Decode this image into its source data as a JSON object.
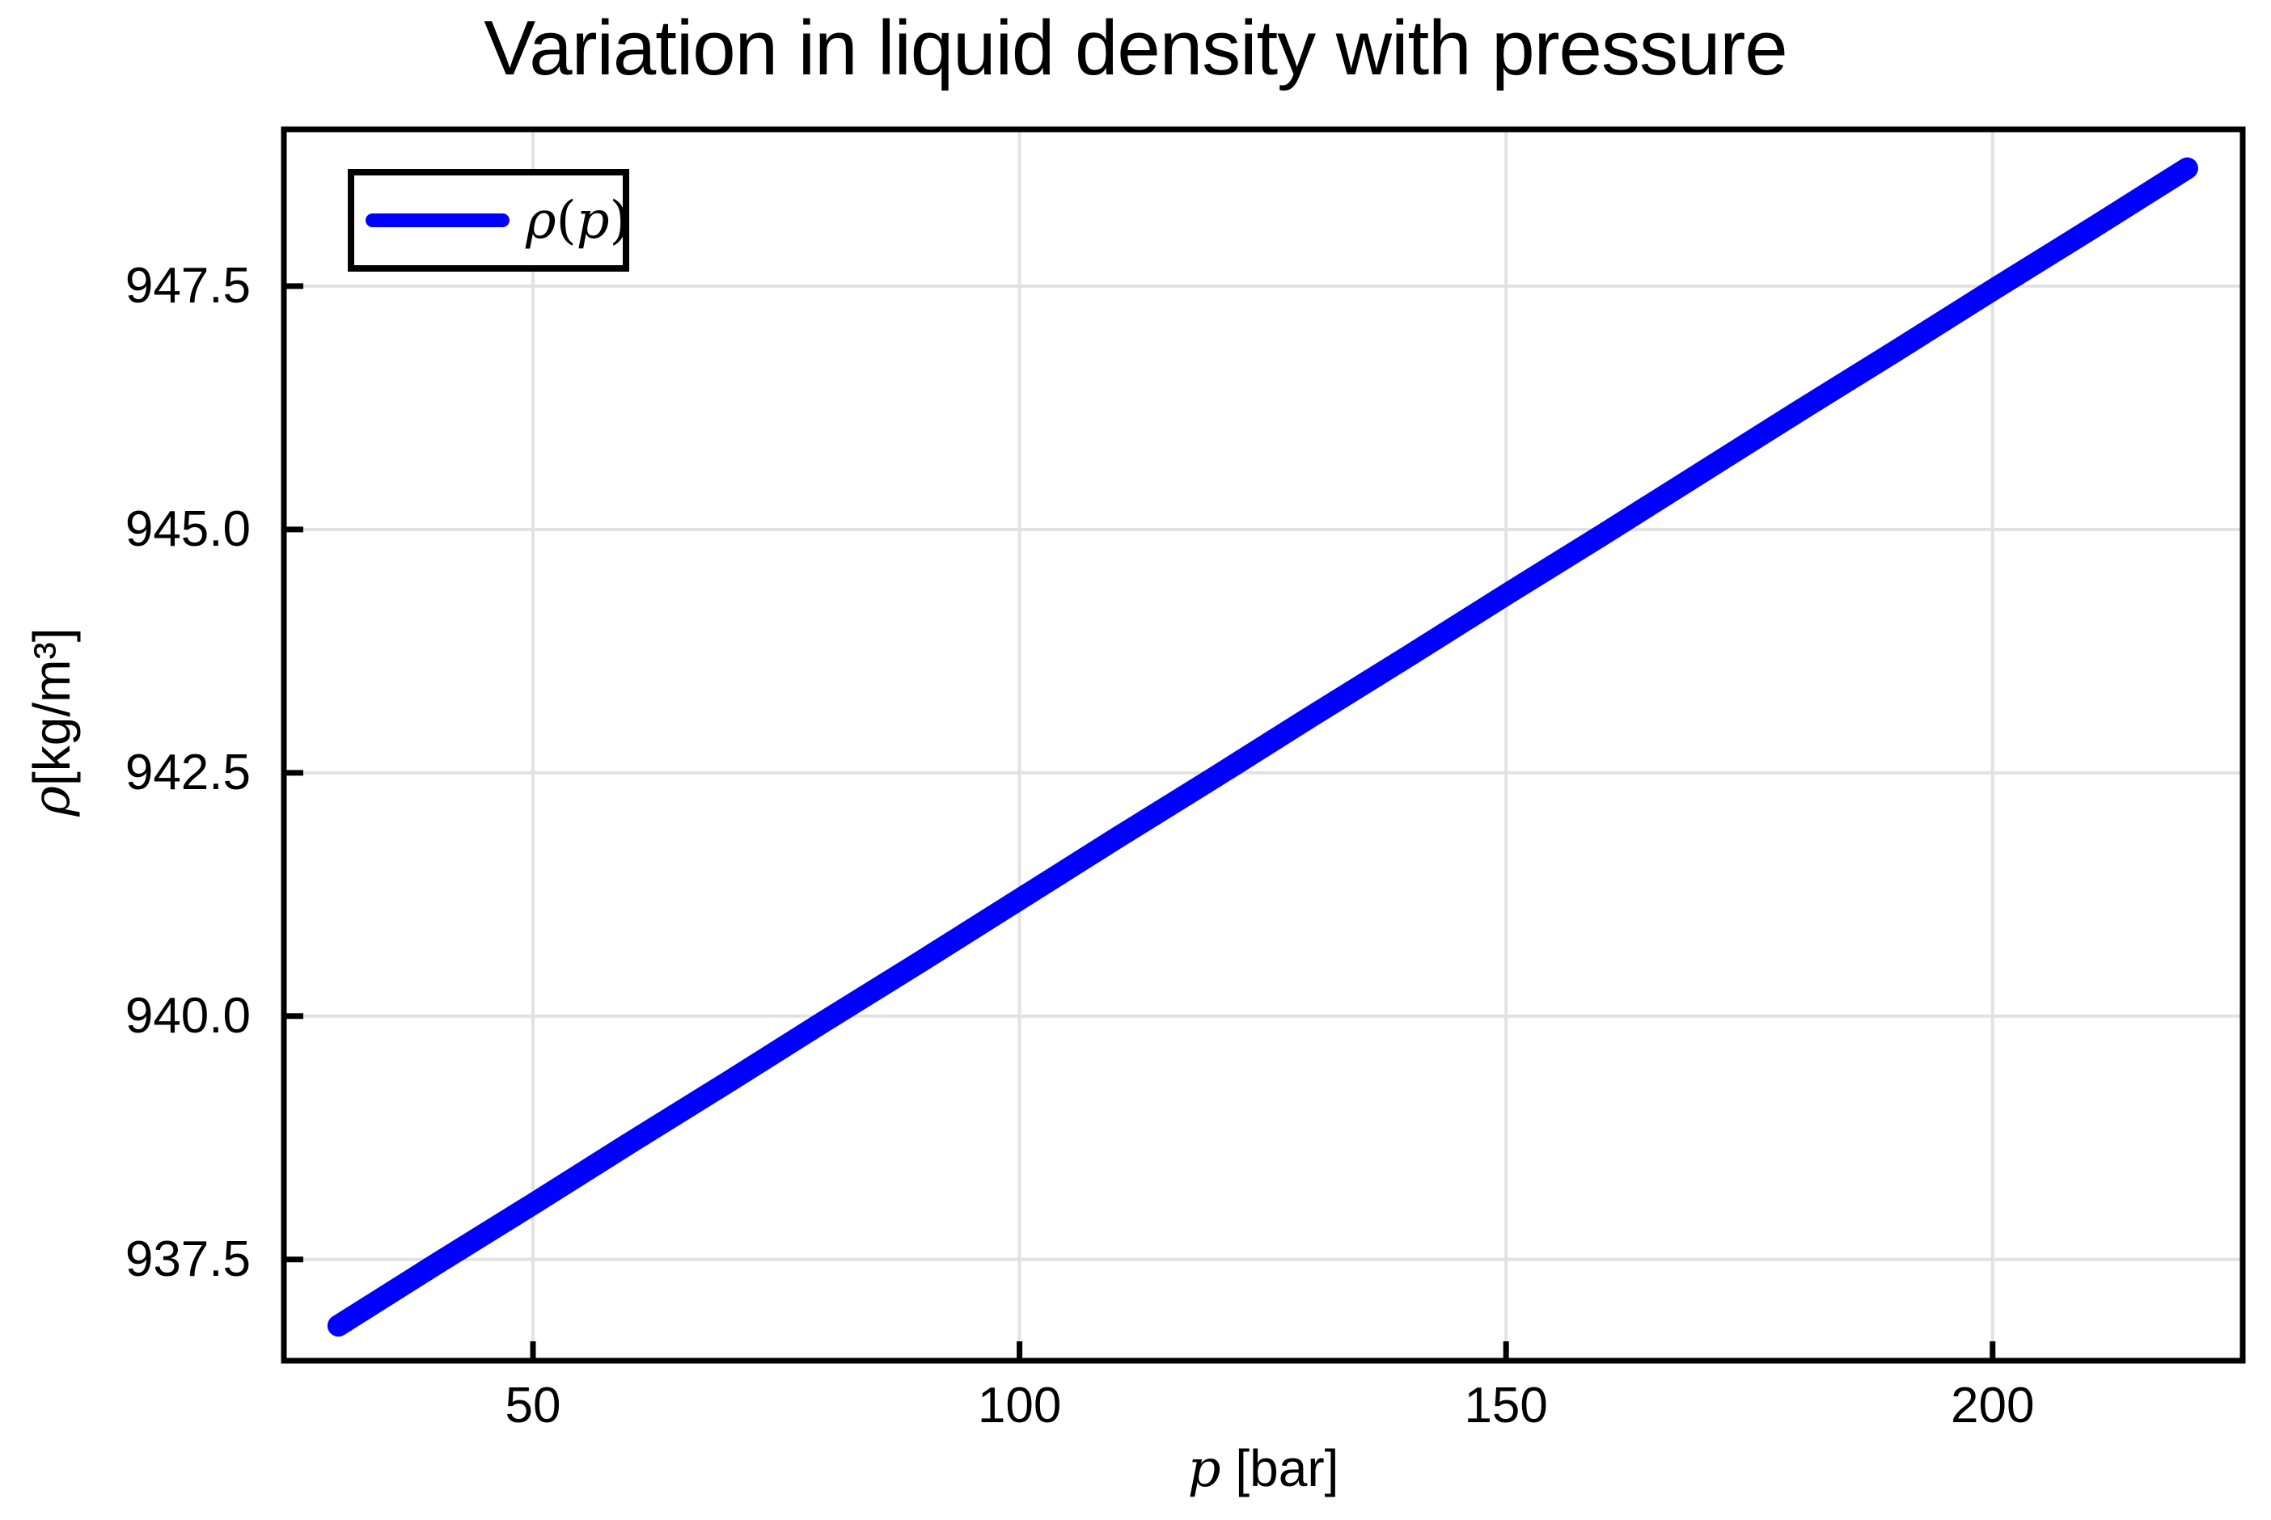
{
  "title": "Variation in liquid density with pressure",
  "colors": {
    "line": "#0000ff",
    "grid": "#e2e2e2",
    "spine": "#000000",
    "background": "#ffffff",
    "text": "#000000"
  },
  "legend": {
    "rho": "ρ",
    "open": "(",
    "p": "p",
    "close": ")"
  },
  "axes": {
    "x": {
      "symbol": "p",
      "unit": " [bar]"
    },
    "y": {
      "symbol": "ρ",
      "unit": " [kg/m³]"
    }
  },
  "chart_data": {
    "type": "line",
    "title": "Variation in liquid density with pressure",
    "xlabel": "p [bar]",
    "ylabel": "ρ [kg/m³]",
    "xlim": [
      24.4,
      225.7
    ],
    "ylim": [
      936.46,
      949.11
    ],
    "xticks": [
      50,
      100,
      150,
      200
    ],
    "xtick_labels": [
      "50",
      "100",
      "150",
      "200"
    ],
    "yticks": [
      947.5,
      945.0,
      942.5,
      940.0,
      937.5
    ],
    "ytick_labels": [
      "947.5",
      "945.0",
      "942.5",
      "940.0",
      "937.5"
    ],
    "grid": true,
    "legend_position": "top-left",
    "series": [
      {
        "name": "ρ(p)",
        "color": "#0000ff",
        "x": [
          30,
          40,
          50,
          60,
          70,
          80,
          90,
          100,
          110,
          120,
          130,
          140,
          150,
          160,
          170,
          180,
          190,
          200,
          210,
          220
        ],
        "y": [
          936.82,
          937.45,
          938.07,
          938.7,
          939.32,
          939.95,
          940.57,
          941.2,
          941.83,
          942.45,
          943.08,
          943.7,
          944.33,
          944.95,
          945.58,
          946.21,
          946.83,
          947.46,
          948.08,
          948.71
        ]
      }
    ]
  }
}
